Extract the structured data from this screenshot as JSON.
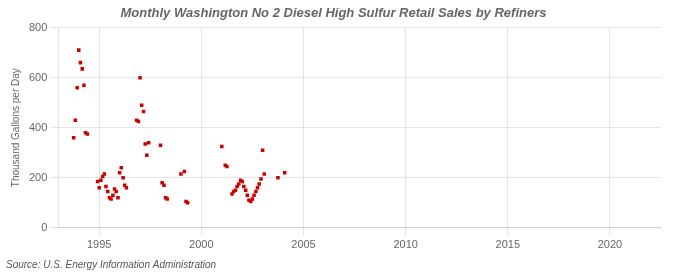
{
  "chart_data": {
    "type": "scatter",
    "title": "Monthly Washington No 2 Diesel High Sulfur Retail Sales by Refiners",
    "ylabel": "Thousand Gallons per Day",
    "annotation": "Source: U.S. Energy Information Administration",
    "color": "#cc0000",
    "marker": "square",
    "grid": true,
    "xlim": [
      1993.0,
      2022.5
    ],
    "ylim": [
      0,
      800
    ],
    "xticks": [
      1995,
      2000,
      2005,
      2010,
      2015,
      2020
    ],
    "yticks": [
      0,
      200,
      400,
      600,
      800
    ],
    "x": [
      1993.75,
      1993.83,
      1993.92,
      1994.0,
      1994.08,
      1994.17,
      1994.25,
      1994.33,
      1994.42,
      1994.92,
      1995.0,
      1995.08,
      1995.17,
      1995.25,
      1995.33,
      1995.42,
      1995.5,
      1995.58,
      1995.67,
      1995.75,
      1995.83,
      1995.92,
      1996.0,
      1996.08,
      1996.17,
      1996.25,
      1996.33,
      1996.83,
      1996.92,
      1997.0,
      1997.08,
      1997.17,
      1997.25,
      1997.33,
      1997.42,
      1998.0,
      1998.08,
      1998.17,
      1998.25,
      1998.33,
      1999.0,
      1999.17,
      1999.25,
      1999.33,
      2001.0,
      2001.17,
      2001.25,
      2001.5,
      2001.58,
      2001.67,
      2001.75,
      2001.83,
      2001.92,
      2002.0,
      2002.08,
      2002.17,
      2002.25,
      2002.33,
      2002.42,
      2002.5,
      2002.58,
      2002.67,
      2002.75,
      2002.83,
      2002.92,
      2003.0,
      2003.08,
      2003.75,
      2004.08
    ],
    "values": [
      360,
      430,
      560,
      710,
      660,
      635,
      570,
      380,
      375,
      185,
      160,
      190,
      205,
      215,
      165,
      145,
      120,
      115,
      130,
      155,
      145,
      120,
      220,
      240,
      200,
      170,
      160,
      430,
      425,
      600,
      490,
      465,
      335,
      290,
      340,
      330,
      180,
      170,
      120,
      115,
      215,
      225,
      105,
      100,
      325,
      250,
      245,
      135,
      145,
      150,
      165,
      175,
      190,
      185,
      165,
      150,
      130,
      110,
      105,
      115,
      130,
      145,
      160,
      175,
      195,
      310,
      215,
      200,
      220
    ]
  }
}
